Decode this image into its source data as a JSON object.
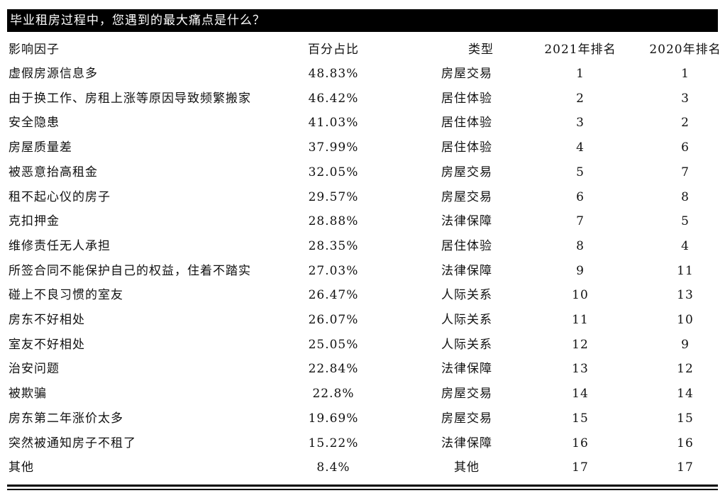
{
  "title": "毕业租房过程中，您遇到的最大痛点是什么？",
  "columns": [
    "影响因子",
    "百分占比",
    "类型",
    "2021年排名",
    "2020年排名"
  ],
  "rows": [
    [
      "虚假房源信息多",
      "48.83%",
      "房屋交易",
      "1",
      "1"
    ],
    [
      "由于换工作、房租上涨等原因导致频繁搬家",
      "46.42%",
      "居住体验",
      "2",
      "3"
    ],
    [
      "安全隐患",
      "41.03%",
      "居住体验",
      "3",
      "2"
    ],
    [
      "房屋质量差",
      "37.99%",
      "居住体验",
      "4",
      "6"
    ],
    [
      "被恶意抬高租金",
      "32.05%",
      "房屋交易",
      "5",
      "7"
    ],
    [
      "租不起心仪的房子",
      "29.57%",
      "房屋交易",
      "6",
      "8"
    ],
    [
      "克扣押金",
      "28.88%",
      "法律保障",
      "7",
      "5"
    ],
    [
      "维修责任无人承担",
      "28.35%",
      "居住体验",
      "8",
      "4"
    ],
    [
      "所签合同不能保护自己的权益，住着不踏实",
      "27.03%",
      "法律保障",
      "9",
      "11"
    ],
    [
      "碰上不良习惯的室友",
      "26.47%",
      "人际关系",
      "10",
      "13"
    ],
    [
      "房东不好相处",
      "26.07%",
      "人际关系",
      "11",
      "10"
    ],
    [
      "室友不好相处",
      "25.05%",
      "人际关系",
      "12",
      "9"
    ],
    [
      "治安问题",
      "22.84%",
      "法律保障",
      "13",
      "12"
    ],
    [
      "被欺骗",
      "22.8%",
      "房屋交易",
      "14",
      "14"
    ],
    [
      "房东第二年涨价太多",
      "19.69%",
      "房屋交易",
      "15",
      "15"
    ],
    [
      "突然被通知房子不租了",
      "15.22%",
      "法律保障",
      "16",
      "16"
    ],
    [
      "其他",
      "8.4%",
      "其他",
      "17",
      "17"
    ]
  ]
}
